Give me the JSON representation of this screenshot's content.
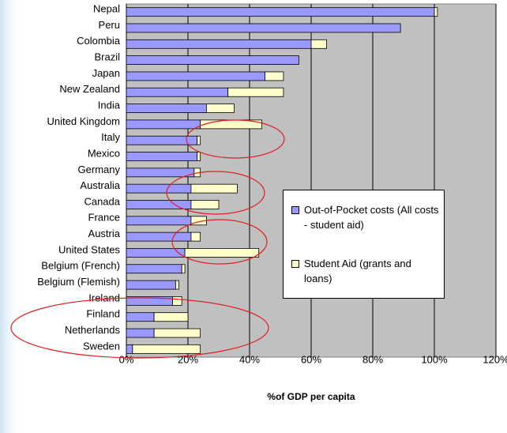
{
  "chart_data": {
    "type": "stacked-bar-horizontal",
    "categories": [
      "Nepal",
      "Peru",
      "Colombia",
      "Brazil",
      "Japan",
      "New Zealand",
      "India",
      "United Kingdom",
      "Italy",
      "Mexico",
      "Germany",
      "Australia",
      "Canada",
      "France",
      "Austria",
      "United States",
      "Belgium (French)",
      "Belgium (Flemish)",
      "Ireland",
      "Finland",
      "Netherlands",
      "Sweden"
    ],
    "series": [
      {
        "name": "Out-of-Pocket costs (All costs - student aid)",
        "color": "#9999ff",
        "values": [
          100,
          89,
          60,
          56,
          45,
          33,
          26,
          24,
          23,
          23,
          22,
          21,
          21,
          21,
          21,
          19,
          18,
          16,
          15,
          9,
          9,
          2
        ]
      },
      {
        "name": "Student Aid (grants and loans)",
        "color": "#ffffcc",
        "values": [
          1,
          0,
          5,
          0,
          6,
          18,
          9,
          20,
          1,
          1,
          2,
          15,
          9,
          5,
          3,
          24,
          1,
          1,
          3,
          11,
          15,
          22
        ]
      }
    ],
    "x_label": "%of GDP per capita",
    "xlim": [
      0,
      120
    ],
    "xticks": [
      {
        "value": 0,
        "label": "0%"
      },
      {
        "value": 20,
        "label": "20%"
      },
      {
        "value": 40,
        "label": "40%"
      },
      {
        "value": 60,
        "label": "60%"
      },
      {
        "value": 80,
        "label": "80%"
      },
      {
        "value": 100,
        "label": "100%"
      },
      {
        "value": 120,
        "label": "120%"
      }
    ],
    "grid": true
  }
}
